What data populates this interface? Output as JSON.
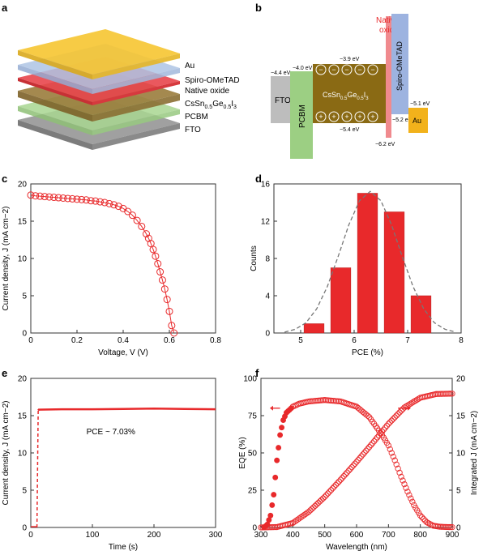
{
  "panel_labels": [
    "a",
    "b",
    "c",
    "d",
    "e",
    "f"
  ],
  "panel_a": {
    "layers": [
      "Au",
      "Spiro-OMeTAD",
      "Native oxide",
      "CsSn0.5Ge0.5I3",
      "PCBM",
      "FTO"
    ],
    "colors": {
      "Au": "#f6c531",
      "Spiro-OMeTAD": "#aec4e4",
      "Native oxide": "#e8464c",
      "Perovskite": "#9a7c3c",
      "PCBM": "#a8d690",
      "FTO": "#9b9b9b"
    }
  },
  "panel_b": {
    "native_oxide_label": [
      "Native",
      "oxide"
    ],
    "labels": {
      "fto": "FTO",
      "pcbm": "PCBM",
      "perovskite": "CsSn",
      "perovskite_sub1": "0.5",
      "perovskite_ge": "Ge",
      "perovskite_sub2": "0.5",
      "perovskite_i": "I",
      "perovskite_sub3": "3",
      "spiro": "Spiro-OMeTAD",
      "au": "Au"
    },
    "energies": {
      "fto": "−4.4 eV",
      "pcbm": "−4.0 eV",
      "perov_cb": "−3.9 eV",
      "perov_vb": "−5.4 eV",
      "oxide": "−6.2 eV",
      "spiro": "−5.2 eV",
      "au": "−5.1 eV"
    },
    "minus": "−",
    "plus": "+",
    "colors": {
      "fto": "#bdbdbd",
      "pcbm": "#9ccf83",
      "perovskite": "#8a6a14",
      "oxide": "#f08a8e",
      "spiro": "#9db3e0",
      "au": "#f2b21b"
    }
  },
  "chart_data": [
    {
      "panel": "c",
      "type": "scatter",
      "xlabel": "Voltage, V (V)",
      "ylabel": "Current density, J (mA cm−2)",
      "xlim": [
        0,
        0.8
      ],
      "ylim": [
        0,
        20
      ],
      "xticks": [
        0,
        0.2,
        0.4,
        0.6,
        0.8
      ],
      "yticks": [
        0,
        5,
        10,
        15,
        20
      ],
      "xtick_labels": [
        "0",
        "0.2",
        "0.4",
        "0.6",
        "0.8"
      ],
      "ytick_labels": [
        "0",
        "5",
        "10",
        "15",
        "20"
      ],
      "color": "#e8292b",
      "series": [
        {
          "x": [
            0.0,
            0.02,
            0.04,
            0.06,
            0.08,
            0.1,
            0.12,
            0.14,
            0.16,
            0.18,
            0.2,
            0.22,
            0.24,
            0.26,
            0.28,
            0.3,
            0.32,
            0.34,
            0.36,
            0.38,
            0.4,
            0.42,
            0.44,
            0.46,
            0.48,
            0.5,
            0.51,
            0.52,
            0.53,
            0.54,
            0.55,
            0.56,
            0.57,
            0.58,
            0.59,
            0.6,
            0.61,
            0.62
          ],
          "y": [
            18.5,
            18.4,
            18.35,
            18.3,
            18.25,
            18.2,
            18.15,
            18.1,
            18.05,
            18.0,
            17.95,
            17.9,
            17.85,
            17.75,
            17.7,
            17.6,
            17.5,
            17.35,
            17.2,
            17.0,
            16.7,
            16.3,
            15.8,
            15.1,
            14.3,
            13.3,
            12.7,
            12.0,
            11.2,
            10.3,
            9.3,
            8.2,
            7.1,
            5.9,
            4.5,
            2.9,
            1.0,
            0.0
          ]
        }
      ]
    },
    {
      "panel": "d",
      "type": "bar",
      "xlabel": "PCE (%)",
      "ylabel": "Counts",
      "xlim": [
        4.5,
        8
      ],
      "ylim": [
        0,
        16
      ],
      "xticks": [
        5,
        6,
        7,
        8
      ],
      "yticks": [
        0,
        4,
        8,
        12,
        16
      ],
      "xtick_labels": [
        "5",
        "6",
        "7",
        "8"
      ],
      "ytick_labels": [
        "0",
        "4",
        "8",
        "12",
        "16"
      ],
      "bar_width": 0.375,
      "color": "#e8292b",
      "categories": [
        5.25,
        5.75,
        6.25,
        6.75,
        7.25
      ],
      "values": [
        1,
        7,
        15,
        13,
        4
      ],
      "fit": {
        "x": [
          4.7,
          4.9,
          5.1,
          5.3,
          5.5,
          5.7,
          5.9,
          6.1,
          6.3,
          6.5,
          6.7,
          6.9,
          7.1,
          7.3,
          7.5,
          7.7,
          7.9
        ],
        "y": [
          0.1,
          0.4,
          1.1,
          2.6,
          5.0,
          8.2,
          11.6,
          14.2,
          15.2,
          14.2,
          11.6,
          8.2,
          5.0,
          2.6,
          1.1,
          0.4,
          0.1
        ]
      }
    },
    {
      "panel": "e",
      "type": "line",
      "xlabel": "Time (s)",
      "ylabel": "Current density, J (mA cm−2)",
      "xlim": [
        0,
        300
      ],
      "ylim": [
        0,
        20
      ],
      "xticks": [
        0,
        100,
        200,
        300
      ],
      "yticks": [
        0,
        5,
        10,
        15,
        20
      ],
      "xtick_labels": [
        "0",
        "100",
        "200",
        "300"
      ],
      "ytick_labels": [
        "0",
        "5",
        "10",
        "15",
        "20"
      ],
      "annotation": "PCE ~ 7.03%",
      "color": "#e8292b",
      "series": [
        {
          "x": [
            0,
            10,
            12,
            13,
            50,
            100,
            150,
            200,
            250,
            300
          ],
          "y": [
            0,
            0,
            15.7,
            15.8,
            15.85,
            15.85,
            15.9,
            15.95,
            15.9,
            15.85
          ]
        }
      ]
    },
    {
      "panel": "f",
      "type": "scatter",
      "xlabel": "Wavelength (nm)",
      "ylabel": "EQE (%)",
      "y2label": "Integrated J (mA cm−2)",
      "xlim": [
        300,
        900
      ],
      "ylim": [
        0,
        100
      ],
      "y2lim": [
        0,
        20
      ],
      "xticks": [
        300,
        400,
        500,
        600,
        700,
        800,
        900
      ],
      "yticks": [
        0,
        25,
        50,
        75,
        100
      ],
      "y2ticks": [
        0,
        5,
        10,
        15,
        20
      ],
      "xtick_labels": [
        "300",
        "400",
        "500",
        "600",
        "700",
        "800",
        "900"
      ],
      "ytick_labels": [
        "0",
        "25",
        "50",
        "75",
        "100"
      ],
      "y2tick_labels": [
        "0",
        "5",
        "10",
        "15",
        "20"
      ],
      "color": "#e8292b",
      "series": [
        {
          "x": [
            310,
            320,
            330,
            340,
            350,
            360,
            370,
            380,
            400,
            420,
            450,
            500,
            550,
            600,
            640,
            680,
            700,
            720,
            740,
            760,
            780,
            800,
            820,
            840,
            860,
            880,
            900
          ],
          "y": [
            0,
            2,
            8,
            22,
            45,
            62,
            72,
            77,
            81,
            83,
            84.5,
            85.5,
            84.5,
            81,
            74,
            62,
            55,
            45,
            34,
            24,
            15,
            8,
            3.5,
            1.2,
            0.5,
            0.3,
            0.2
          ]
        },
        {
          "x": [
            300,
            350,
            400,
            450,
            500,
            550,
            600,
            650,
            700,
            750,
            800,
            850,
            900
          ],
          "y": [
            0,
            0.05,
            0.6,
            2.1,
            4.1,
            6.4,
            8.8,
            11.3,
            13.9,
            16.1,
            17.4,
            17.9,
            17.95
          ]
        }
      ]
    }
  ]
}
